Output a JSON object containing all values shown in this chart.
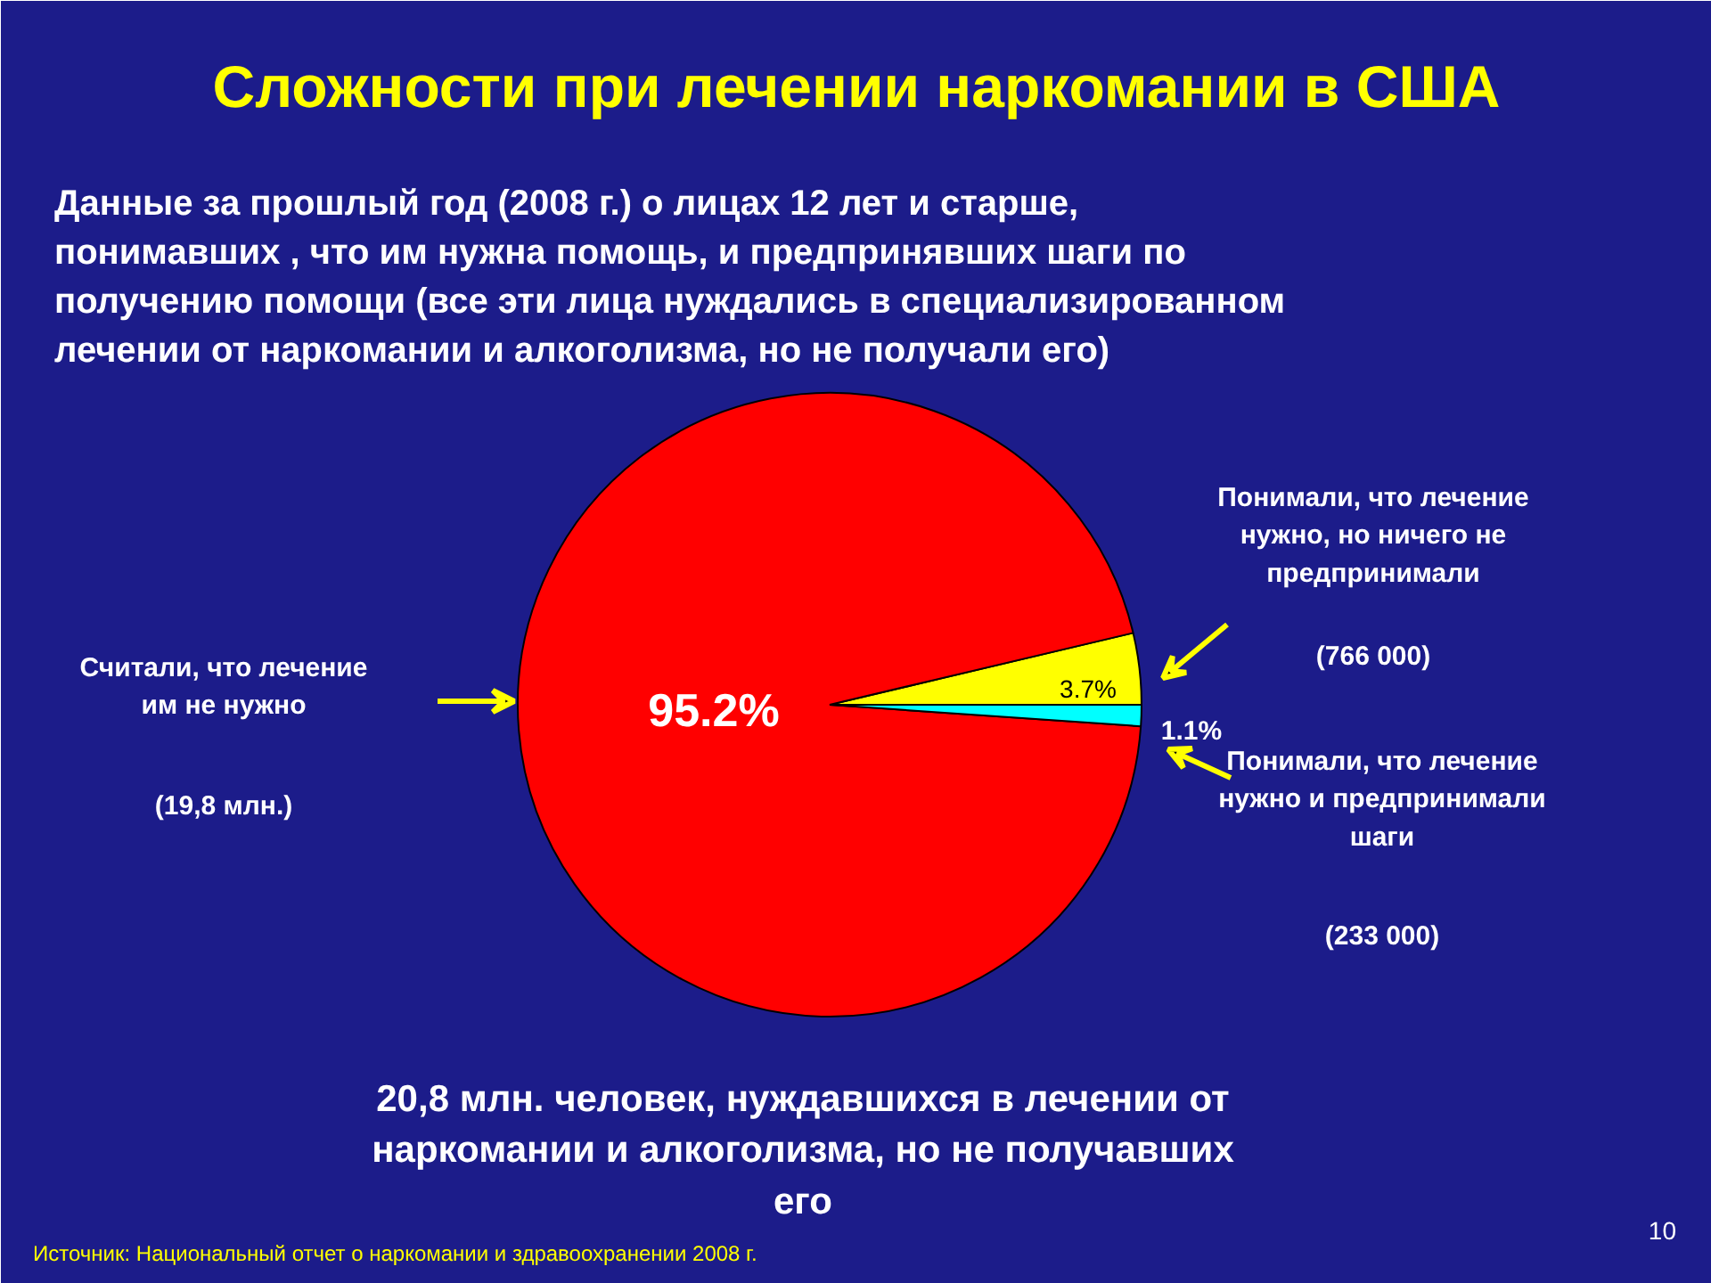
{
  "chart_data": {
    "type": "pie",
    "title": "Сложности при лечении наркомании в США",
    "subtitle": "Данные за прошлый год (2008 г.) о лицах 12 лет и старше, понимавших , что им нужна помощь, и предпринявших шаги по получению помощи (все эти лица нуждались в специализированном лечении от наркомании и алкоголизма, но не получали его)",
    "categories": [
      "Понимали, что лечение нужно, но ничего не предпринимали",
      "Считали, что лечение им не нужно",
      "Понимали, что лечение нужно и предпринимали шаги"
    ],
    "values": [
      3.7,
      95.2,
      1.1
    ],
    "colors": [
      "#ffff00",
      "#ff0000",
      "#00ffff"
    ],
    "value_labels": [
      "3.7%",
      "95.2%",
      "1.1%"
    ],
    "annotations": [
      "(766 000)",
      "(19,8 млн.)",
      "(233 000)",
      "20,8 млн. человек, нуждавшихся в лечении от наркомании и алкоголизма, но не получавших его",
      "Источник: Национальный отчет о наркомании и здравоохранении 2008 г.",
      "10"
    ]
  }
}
